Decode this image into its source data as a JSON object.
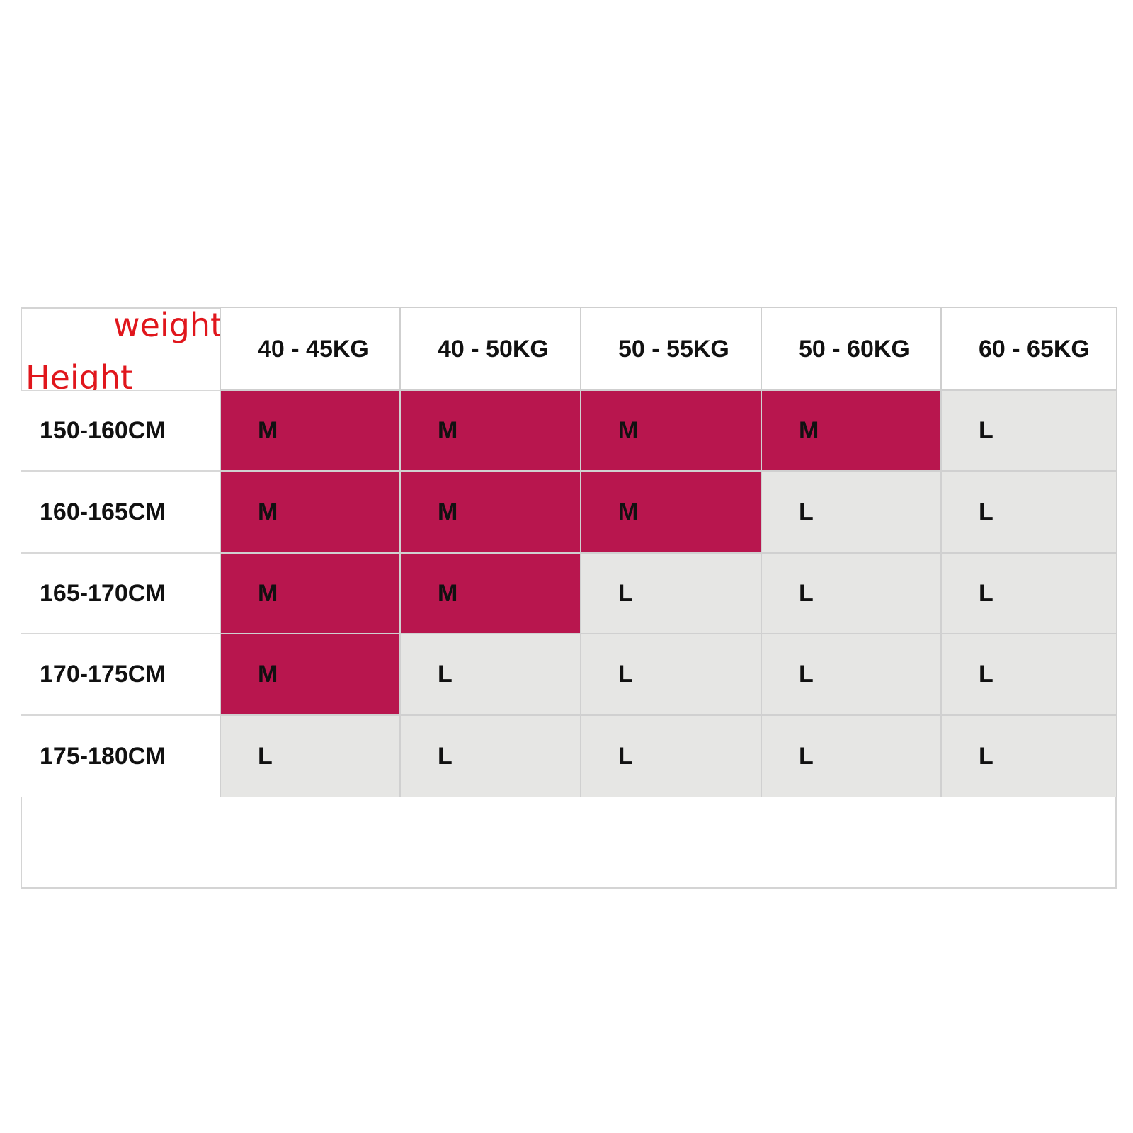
{
  "header": {
    "col_label": "weight",
    "row_label": "Height",
    "columns": [
      "40 - 45KG",
      "40 - 50KG",
      "50 - 55KG",
      "50 - 60KG",
      "60 - 65KG"
    ]
  },
  "table": {
    "rows": [
      {
        "label": "150-160CM",
        "cells": [
          "M",
          "M",
          "M",
          "M",
          "L"
        ]
      },
      {
        "label": "160-165CM",
        "cells": [
          "M",
          "M",
          "M",
          "L",
          "L"
        ]
      },
      {
        "label": "165-170CM",
        "cells": [
          "M",
          "M",
          "L",
          "L",
          "L"
        ]
      },
      {
        "label": "170-175CM",
        "cells": [
          "M",
          "L",
          "L",
          "L",
          "L"
        ]
      },
      {
        "label": "175-180CM",
        "cells": [
          "L",
          "L",
          "L",
          "L",
          "L"
        ]
      }
    ]
  },
  "colors": {
    "M": "#b8164e",
    "L": "#e6e6e4"
  }
}
